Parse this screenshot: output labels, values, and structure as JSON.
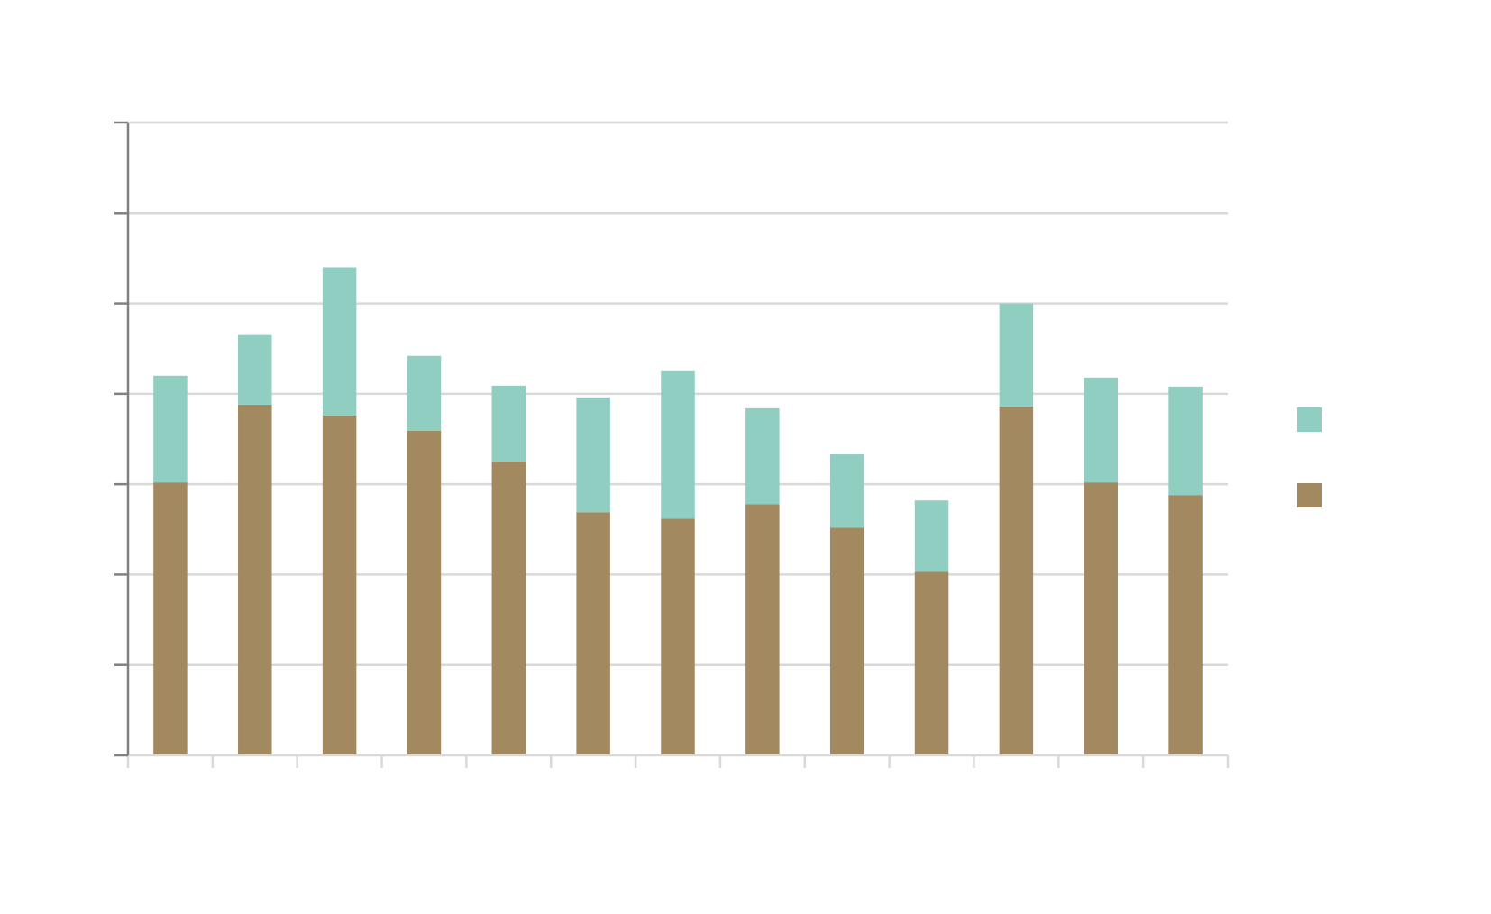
{
  "chart_data": {
    "type": "bar",
    "stacked": true,
    "categories": [
      "",
      "",
      "",
      "",
      "",
      "",
      "",
      "",
      "",
      "",
      "",
      "",
      ""
    ],
    "series": [
      {
        "color": "#a3895f",
        "values": [
          302,
          388,
          376,
          359,
          325,
          269,
          262,
          278,
          252,
          203,
          386,
          302,
          288
        ]
      },
      {
        "color": "#91cec2",
        "values": [
          118,
          77,
          164,
          83,
          84,
          127,
          163,
          106,
          81,
          79,
          114,
          116,
          120
        ]
      }
    ],
    "ylim": [
      0,
      700
    ],
    "ytick_step": 100,
    "grid": true,
    "legend": {
      "placement": "right",
      "entries": [
        {
          "color": "#91cec2",
          "label": ""
        },
        {
          "color": "#a3895f",
          "label": ""
        }
      ]
    },
    "title": "",
    "xlabel": "",
    "ylabel": ""
  }
}
